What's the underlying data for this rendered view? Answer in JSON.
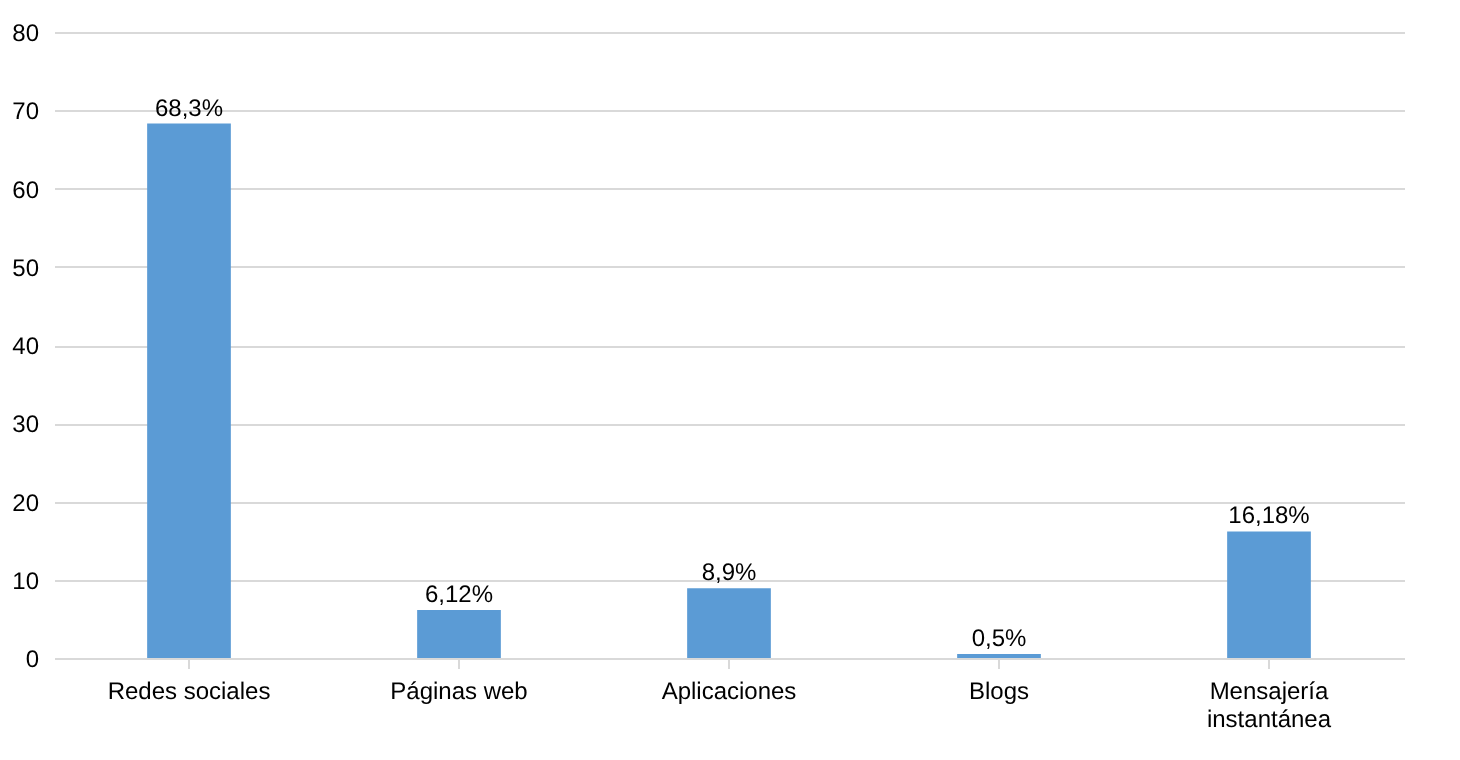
{
  "chart_data": {
    "type": "bar",
    "categories": [
      "Redes sociales",
      "Páginas web",
      "Aplicaciones",
      "Blogs",
      "Mensajería instantánea"
    ],
    "values": [
      68.3,
      6.12,
      8.9,
      0.5,
      16.18
    ],
    "value_labels": [
      "68,3%",
      "6,12%",
      "8,9%",
      "0,5%",
      "16,18%"
    ],
    "color": "#5b9bd5",
    "ylim": [
      0,
      80
    ],
    "yticks": [
      0,
      10,
      20,
      30,
      40,
      50,
      60,
      70,
      80
    ],
    "grid": "y"
  }
}
